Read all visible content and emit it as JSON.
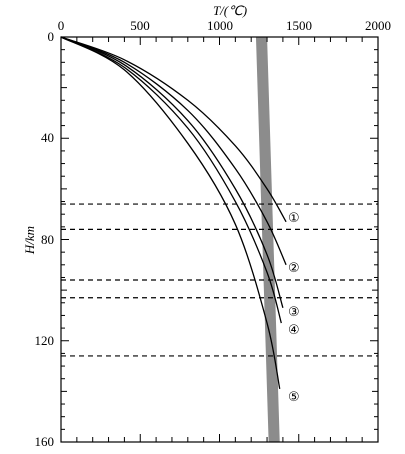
{
  "chart_data": {
    "type": "line",
    "x_axis": {
      "label": "T/(℃)",
      "position": "top",
      "range": [
        0,
        2000
      ],
      "ticks": [
        "0",
        "500",
        "1000",
        "1500",
        "2000"
      ]
    },
    "y_axis": {
      "label": "H/km",
      "range": [
        0,
        160
      ],
      "inverted": true,
      "ticks": [
        "0",
        "40",
        "80",
        "120",
        "160"
      ]
    },
    "series": [
      {
        "label": "①",
        "x": [
          0,
          400,
          800,
          1100,
          1300,
          1420
        ],
        "y": [
          0,
          9,
          25,
          43,
          60,
          73
        ]
      },
      {
        "label": "②",
        "x": [
          0,
          400,
          800,
          1100,
          1300,
          1420
        ],
        "y": [
          0,
          10,
          29,
          52,
          73,
          90
        ]
      },
      {
        "label": "③",
        "x": [
          0,
          400,
          800,
          1100,
          1300,
          1400
        ],
        "y": [
          0,
          11,
          33,
          60,
          86,
          107
        ]
      },
      {
        "label": "④",
        "x": [
          0,
          400,
          800,
          1100,
          1300,
          1390
        ],
        "y": [
          0,
          12,
          36,
          65,
          93,
          113
        ]
      },
      {
        "label": "⑤",
        "x": [
          0,
          400,
          800,
          1100,
          1300,
          1380
        ],
        "y": [
          0,
          13,
          42,
          74,
          113,
          139
        ]
      }
    ],
    "band": {
      "x_top": [
        1230,
        1300
      ],
      "x_bottom": [
        1310,
        1380
      ]
    },
    "reference_lines_y": [
      66,
      76,
      96,
      103,
      126
    ]
  }
}
